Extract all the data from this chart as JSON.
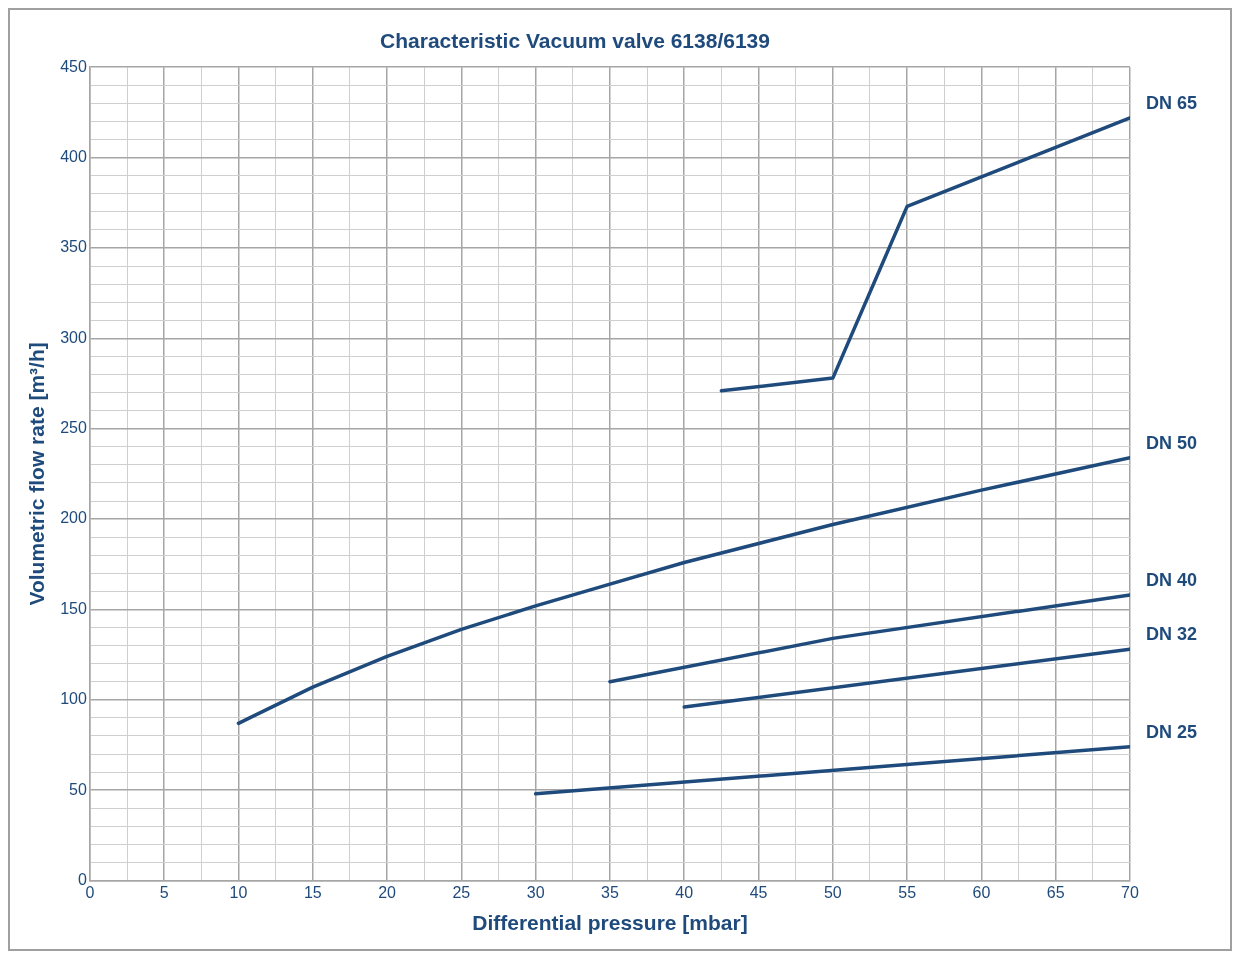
{
  "chart_data": {
    "type": "line",
    "title": "Characteristic Vacuum valve 6138/6139",
    "xlabel": "Differential pressure [mbar]",
    "ylabel": "Volumetric flow rate [m³/h]",
    "xlim": [
      0,
      70
    ],
    "ylim": [
      0,
      450
    ],
    "xticks": [
      0,
      {
        "value": 2.5,
        "label": null
      },
      5,
      {
        "value": 7.5,
        "label": null
      },
      10,
      {
        "value": 12.5,
        "label": null
      },
      15,
      {
        "value": 17.5,
        "label": null
      },
      20,
      {
        "value": 22.5,
        "label": null
      },
      25,
      {
        "value": 27.5,
        "label": null
      },
      30,
      {
        "value": 32.5,
        "label": null
      },
      35,
      {
        "value": 37.5,
        "label": null
      },
      40,
      {
        "value": 42.5,
        "label": null
      },
      45,
      {
        "value": 47.5,
        "label": null
      },
      50,
      {
        "value": 52.5,
        "label": null
      },
      55,
      {
        "value": 57.5,
        "label": null
      },
      60,
      {
        "value": 62.5,
        "label": null
      },
      65,
      {
        "value": 67.5,
        "label": null
      },
      70
    ],
    "yticks": [
      0,
      {
        "value": 10,
        "label": null
      },
      {
        "value": 20,
        "label": null
      },
      {
        "value": 30,
        "label": null
      },
      {
        "value": 40,
        "label": null
      },
      50,
      {
        "value": 60,
        "label": null
      },
      {
        "value": 70,
        "label": null
      },
      {
        "value": 80,
        "label": null
      },
      {
        "value": 90,
        "label": null
      },
      100,
      {
        "value": 110,
        "label": null
      },
      {
        "value": 120,
        "label": null
      },
      {
        "value": 130,
        "label": null
      },
      {
        "value": 140,
        "label": null
      },
      150,
      {
        "value": 160,
        "label": null
      },
      {
        "value": 170,
        "label": null
      },
      {
        "value": 180,
        "label": null
      },
      {
        "value": 190,
        "label": null
      },
      200,
      {
        "value": 210,
        "label": null
      },
      {
        "value": 220,
        "label": null
      },
      {
        "value": 230,
        "label": null
      },
      {
        "value": 240,
        "label": null
      },
      250,
      {
        "value": 260,
        "label": null
      },
      {
        "value": 270,
        "label": null
      },
      {
        "value": 280,
        "label": null
      },
      {
        "value": 290,
        "label": null
      },
      300,
      {
        "value": 310,
        "label": null
      },
      {
        "value": 320,
        "label": null
      },
      {
        "value": 330,
        "label": null
      },
      {
        "value": 340,
        "label": null
      },
      350,
      {
        "value": 360,
        "label": null
      },
      {
        "value": 370,
        "label": null
      },
      {
        "value": 380,
        "label": null
      },
      {
        "value": 390,
        "label": null
      },
      400,
      {
        "value": 410,
        "label": null
      },
      {
        "value": 420,
        "label": null
      },
      {
        "value": 430,
        "label": null
      },
      {
        "value": 440,
        "label": null
      },
      450
    ],
    "grid": true,
    "legend": false,
    "marker": "none",
    "line_style": "solid",
    "series": [
      {
        "name": "DN 65",
        "color": "#1f4a7c",
        "x": [
          42.5,
          50,
          55,
          70
        ],
        "values": [
          271,
          278,
          373,
          422
        ]
      },
      {
        "name": "DN 50",
        "color": "#1f4a7c",
        "x": [
          10,
          15,
          20,
          25,
          30,
          35,
          40,
          50,
          60,
          70
        ],
        "values": [
          87,
          107,
          124,
          139,
          152,
          164,
          176,
          197,
          216,
          234
        ]
      },
      {
        "name": "DN 40",
        "color": "#1f4a7c",
        "x": [
          35,
          50,
          70
        ],
        "values": [
          110,
          134,
          158
        ]
      },
      {
        "name": "DN 32",
        "color": "#1f4a7c",
        "x": [
          40,
          70
        ],
        "values": [
          96,
          128
        ]
      },
      {
        "name": "DN 25",
        "color": "#1f4a7c",
        "x": [
          30,
          70
        ],
        "values": [
          48,
          74
        ]
      }
    ]
  }
}
